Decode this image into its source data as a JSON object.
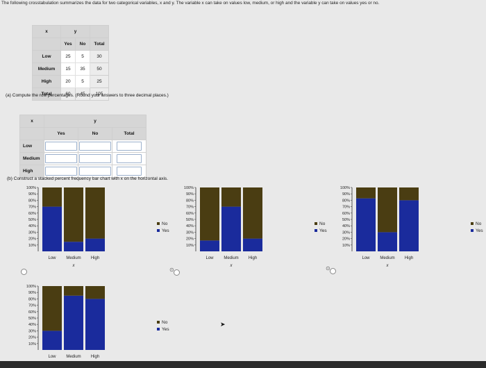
{
  "intro_text": "The following crosstabulation summarizes the data for two categorical variables, x and y. The variable x can take on values low, medium, or high and the variable y can take on values yes or no.",
  "crosstab": {
    "y_label": "y",
    "x_label": "x",
    "headers": [
      "Yes",
      "No",
      "Total"
    ],
    "rows": [
      {
        "label": "Low",
        "yes": "25",
        "no": "5",
        "total": "30"
      },
      {
        "label": "Medium",
        "yes": "15",
        "no": "35",
        "total": "50"
      },
      {
        "label": "High",
        "yes": "20",
        "no": "5",
        "total": "25"
      },
      {
        "label": "Total",
        "yes": "60",
        "no": "45",
        "total": "105"
      }
    ]
  },
  "part_a": {
    "prompt": "(a) Compute the row percentages. (Round your answers to three decimal places.)",
    "y_label": "y",
    "x_label": "x",
    "headers": [
      "Yes",
      "No",
      "Total"
    ],
    "row_labels": [
      "Low",
      "Medium",
      "High"
    ]
  },
  "part_b": {
    "prompt": "(b) Construct a stacked percent frequency bar chart with x on the horizontal axis."
  },
  "colors": {
    "yes": "#1a2b9c",
    "no": "#4a3d12"
  },
  "chart_data": [
    {
      "type": "bar",
      "stacked": true,
      "id": "option-1",
      "categories": [
        "Low",
        "Medium",
        "High"
      ],
      "series": [
        {
          "name": "Yes",
          "values": [
            70,
            15,
            20
          ]
        },
        {
          "name": "No",
          "values": [
            30,
            85,
            80
          ]
        }
      ],
      "yticks": [
        "10%",
        "20%",
        "30%",
        "40%",
        "50%",
        "60%",
        "70%",
        "80%",
        "90%",
        "100%"
      ],
      "xlabel": "x",
      "legend": [
        "No",
        "Yes"
      ],
      "ylim": [
        0,
        100
      ]
    },
    {
      "type": "bar",
      "stacked": true,
      "id": "option-2",
      "categories": [
        "Low",
        "Medium",
        "High"
      ],
      "series": [
        {
          "name": "Yes",
          "values": [
            17,
            70,
            20
          ]
        },
        {
          "name": "No",
          "values": [
            83,
            30,
            80
          ]
        }
      ],
      "yticks": [
        "10%",
        "20%",
        "30%",
        "40%",
        "50%",
        "60%",
        "70%",
        "80%",
        "90%",
        "100%"
      ],
      "xlabel": "x",
      "legend": [
        "No",
        "Yes"
      ],
      "ylim": [
        0,
        100
      ]
    },
    {
      "type": "bar",
      "stacked": true,
      "id": "option-3",
      "categories": [
        "Low",
        "Medium",
        "High"
      ],
      "series": [
        {
          "name": "Yes",
          "values": [
            83,
            30,
            80
          ]
        },
        {
          "name": "No",
          "values": [
            17,
            70,
            20
          ]
        }
      ],
      "yticks": [
        "10%",
        "20%",
        "30%",
        "40%",
        "50%",
        "60%",
        "70%",
        "80%",
        "90%",
        "100%"
      ],
      "xlabel": "x",
      "legend": [
        "No",
        "Yes"
      ],
      "ylim": [
        0,
        100
      ]
    },
    {
      "type": "bar",
      "stacked": true,
      "id": "option-4",
      "categories": [
        "Low",
        "Medium",
        "High"
      ],
      "series": [
        {
          "name": "Yes",
          "values": [
            30,
            85,
            80
          ]
        },
        {
          "name": "No",
          "values": [
            70,
            15,
            20
          ]
        }
      ],
      "yticks": [
        "10%",
        "20%",
        "30%",
        "40%",
        "50%",
        "60%",
        "70%",
        "80%",
        "90%",
        "100%"
      ],
      "xlabel": "",
      "legend": [
        "No",
        "Yes"
      ],
      "ylim": [
        0,
        100
      ]
    }
  ]
}
